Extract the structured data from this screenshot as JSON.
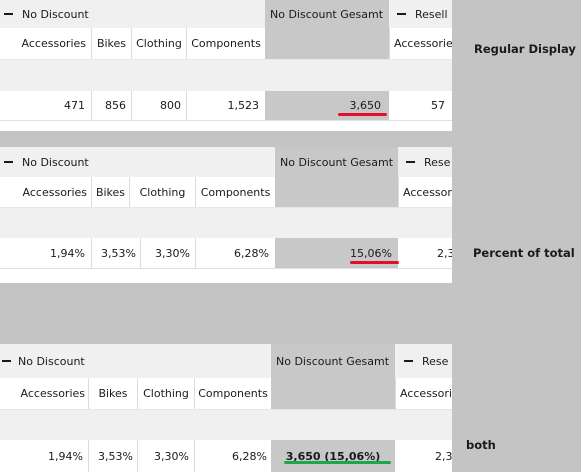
{
  "colors": {
    "underline_red": "#e0102a",
    "underline_green": "#1aa84a",
    "gesamt_bg": "#c8c8c8",
    "sidebar_bg": "#c4c4c4"
  },
  "sidebar": {
    "regular_label": "Regular Display",
    "percent_label": "Percent of total",
    "both_label": "both"
  },
  "panels": [
    {
      "group_title": "No Discount",
      "gesamt_title": "No Discount Gesamt",
      "next_group": "Resell",
      "columns": [
        "Accessories",
        "Bikes",
        "Clothing",
        "Components"
      ],
      "next_column": "Accessories",
      "values": [
        "471",
        "856",
        "800",
        "1,523"
      ],
      "total": "3,650",
      "next_value": "57"
    },
    {
      "group_title": "No Discount",
      "gesamt_title": "No Discount Gesamt",
      "next_group": "Rese",
      "columns": [
        "Accessories",
        "Bikes",
        "Clothing",
        "Components"
      ],
      "next_column": "Accessor",
      "values": [
        "1,94%",
        "3,53%",
        "3,30%",
        "6,28%"
      ],
      "total": "15,06%",
      "next_value": "2,3"
    },
    {
      "group_title": "No Discount",
      "gesamt_title": "No Discount Gesamt",
      "next_group": "Rese",
      "columns": [
        "Accessories",
        "Bikes",
        "Clothing",
        "Components"
      ],
      "next_column": "Accessori",
      "values": [
        "1,94%",
        "3,53%",
        "3,30%",
        "6,28%"
      ],
      "total": "3,650 (15,06%)",
      "next_value": "2,3"
    }
  ]
}
